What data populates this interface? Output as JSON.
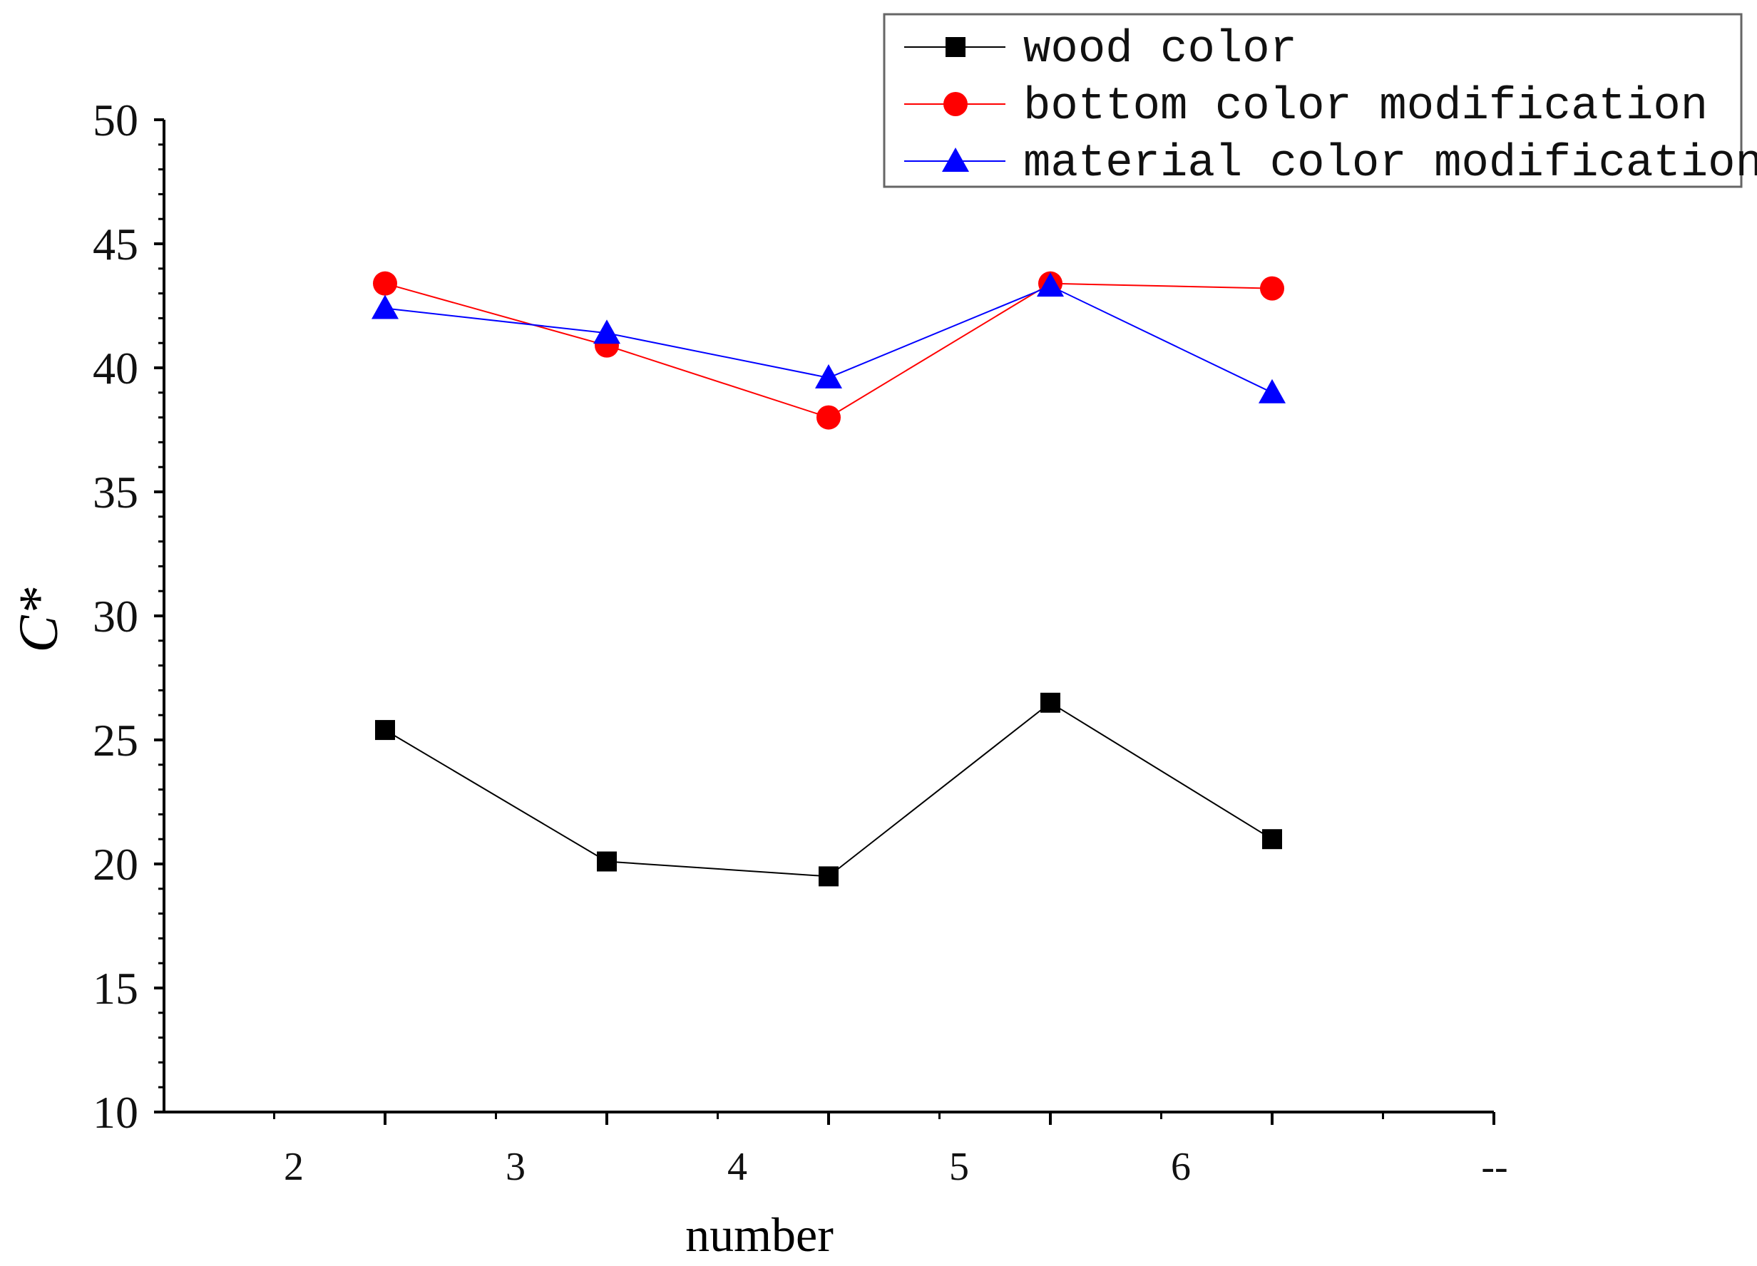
{
  "chart_data": {
    "type": "line",
    "ylabel": "C*",
    "xlabel": "number",
    "ylim": [
      10,
      50
    ],
    "yticks": [
      10,
      15,
      20,
      25,
      30,
      35,
      40,
      45,
      50
    ],
    "xtick_labels": [
      "2",
      "3",
      "4",
      "5",
      "6",
      "--"
    ],
    "grid": false,
    "legend_position": "top-right",
    "series": [
      {
        "name": "wood color",
        "color": "#000000",
        "marker": "square",
        "values": [
          25.4,
          20.1,
          19.5,
          26.5,
          21.0
        ]
      },
      {
        "name": "bottom color modification",
        "color": "#ff0000",
        "marker": "circle",
        "values": [
          43.4,
          40.9,
          38.0,
          43.4,
          43.2
        ]
      },
      {
        "name": "material color modification",
        "color": "#0000ff",
        "marker": "triangle",
        "values": [
          42.4,
          41.4,
          39.6,
          43.3,
          39.0
        ]
      }
    ]
  }
}
